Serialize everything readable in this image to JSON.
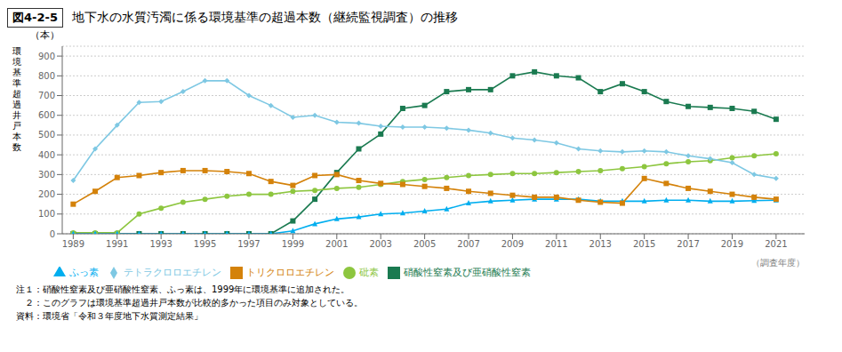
{
  "chart_data": {
    "type": "line",
    "title": "地下水の水質汚濁に係る環境基準の超過本数（継続監視調査）の推移",
    "annotations": [
      "図4-2-5",
      "（本）",
      "注１：硝酸性窒素及び亜硝酸性窒素、ふっ素は、1999年に環境基準に追加された。",
      "　２：このグラフは環境基準超過井戸本数が比較的多かった項目のみ対象としている。",
      "資料：環境省「令和３年度地下水質測定結果」"
    ],
    "x_label": "（調査年度）",
    "y_label": "環\n境\n基\n準\n超\n過\n井\n戸\n本\n数",
    "x": [
      1989,
      1990,
      1991,
      1992,
      1993,
      1994,
      1995,
      1996,
      1997,
      1998,
      1999,
      2000,
      2001,
      2002,
      2003,
      2004,
      2005,
      2006,
      2007,
      2008,
      2009,
      2010,
      2011,
      2012,
      2013,
      2014,
      2015,
      2016,
      2017,
      2018,
      2019,
      2020,
      2021
    ],
    "xlim": [
      1988.5,
      2022.3
    ],
    "xticks": [
      1989,
      1991,
      1993,
      1995,
      1997,
      1999,
      2001,
      2003,
      2005,
      2007,
      2009,
      2011,
      2013,
      2015,
      2017,
      2019,
      2021
    ],
    "ylim": [
      0,
      950
    ],
    "yticks": [
      0,
      100,
      200,
      300,
      400,
      500,
      600,
      700,
      800,
      900
    ],
    "grid": true,
    "legend": "bottom",
    "series": [
      {
        "name": "硝酸性窒素及び亜硝酸性窒素",
        "color": "#1a7a50",
        "marker": "square",
        "values": [
          0,
          0,
          0,
          0,
          0,
          0,
          0,
          0,
          0,
          0,
          65,
          175,
          310,
          430,
          505,
          635,
          650,
          720,
          730,
          730,
          800,
          820,
          800,
          790,
          720,
          760,
          720,
          670,
          645,
          640,
          635,
          620,
          580
        ]
      },
      {
        "name": "砒素",
        "color": "#8dc63f",
        "marker": "circle",
        "values": [
          5,
          5,
          5,
          100,
          130,
          160,
          175,
          190,
          200,
          200,
          215,
          220,
          230,
          235,
          250,
          265,
          275,
          285,
          295,
          300,
          305,
          305,
          310,
          315,
          320,
          330,
          340,
          355,
          365,
          370,
          385,
          395,
          405
        ]
      },
      {
        "name": "ふっ素",
        "color": "#00aeef",
        "marker": "triangle",
        "values": [
          0,
          0,
          0,
          0,
          0,
          0,
          0,
          0,
          0,
          0,
          15,
          50,
          75,
          85,
          100,
          105,
          115,
          125,
          155,
          165,
          170,
          175,
          175,
          175,
          165,
          165,
          165,
          170,
          170,
          165,
          165,
          168,
          170
        ]
      },
      {
        "name": "テトラクロロエチレン",
        "color": "#7ec8e3",
        "marker": "diamond",
        "values": [
          270,
          430,
          550,
          665,
          670,
          720,
          775,
          775,
          700,
          650,
          590,
          600,
          565,
          560,
          545,
          540,
          540,
          535,
          525,
          510,
          485,
          475,
          460,
          430,
          420,
          415,
          420,
          415,
          395,
          380,
          360,
          300,
          280
        ]
      },
      {
        "name": "トリクロロエチレン",
        "color": "#d4820a",
        "marker": "square",
        "values": [
          150,
          215,
          285,
          295,
          310,
          320,
          320,
          315,
          305,
          265,
          245,
          295,
          300,
          270,
          255,
          250,
          240,
          230,
          215,
          205,
          195,
          185,
          185,
          170,
          160,
          155,
          280,
          255,
          230,
          215,
          200,
          185,
          175
        ]
      }
    ]
  }
}
